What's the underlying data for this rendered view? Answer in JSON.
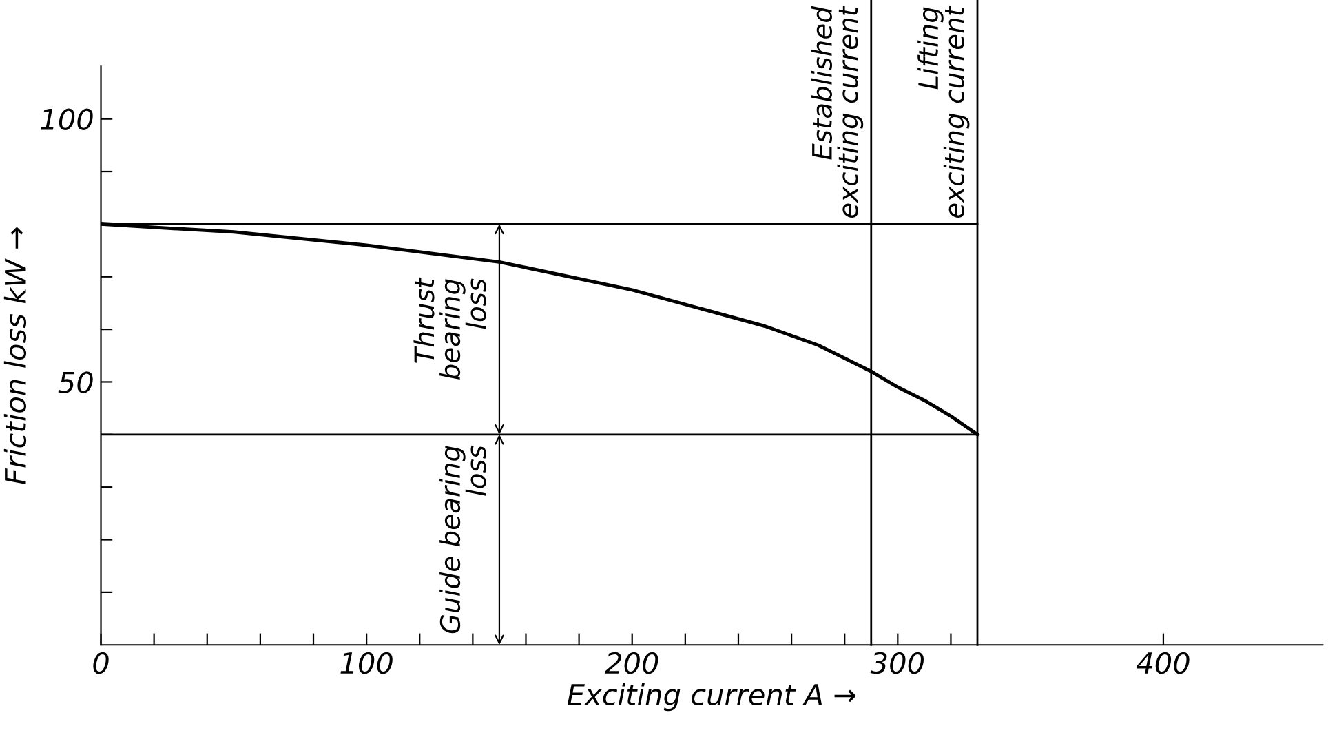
{
  "chart_data": {
    "type": "line",
    "xlabel": "Exciting current A →",
    "ylabel": "Friction loss kW →",
    "x": [
      0,
      50,
      100,
      150,
      200,
      250,
      270,
      290,
      300,
      310,
      320,
      330
    ],
    "series": [
      {
        "color": "#000000",
        "values": [
          80,
          78.5,
          76,
          72.8,
          67.5,
          60.6,
          57,
          52,
          49,
          46.5,
          43.5,
          40
        ]
      }
    ],
    "xlim": [
      0,
      460
    ],
    "ylim": [
      0,
      110
    ],
    "xticks": [
      0,
      {
        "value": 20,
        "label": null
      },
      {
        "value": 40,
        "label": null
      },
      {
        "value": 60,
        "label": null
      },
      {
        "value": 80,
        "label": null
      },
      100,
      {
        "value": 120,
        "label": null
      },
      {
        "value": 140,
        "label": null
      },
      {
        "value": 160,
        "label": null
      },
      {
        "value": 180,
        "label": null
      },
      200,
      {
        "value": 220,
        "label": null
      },
      {
        "value": 240,
        "label": null
      },
      {
        "value": 260,
        "label": null
      },
      {
        "value": 280,
        "label": null
      },
      300,
      {
        "value": 320,
        "label": null
      },
      400
    ],
    "yticks": [
      {
        "value": 10,
        "label": null
      },
      {
        "value": 20,
        "label": null
      },
      {
        "value": 30,
        "label": null
      },
      {
        "value": 40,
        "label": null
      },
      50,
      {
        "value": 60,
        "label": null
      },
      {
        "value": 70,
        "label": null
      },
      {
        "value": 80,
        "label": null
      },
      {
        "value": 90,
        "label": null
      },
      100
    ],
    "ref_lines": [
      {
        "axis": "y",
        "value": 80
      },
      {
        "axis": "y",
        "value": 40
      },
      {
        "axis": "x",
        "value": 290,
        "label": "Established\nexciting current"
      },
      {
        "axis": "x",
        "value": 330,
        "label": "Lifting\nexciting current"
      }
    ],
    "annotations": [
      {
        "text": "Thrust\nbearing\nloss",
        "x": 150,
        "y": 80
      },
      {
        "text": "Guide bearing\nloss",
        "x": 150,
        "y": 40
      }
    ],
    "grid": false,
    "legend": false,
    "marker": "none",
    "line_style": "solid"
  }
}
